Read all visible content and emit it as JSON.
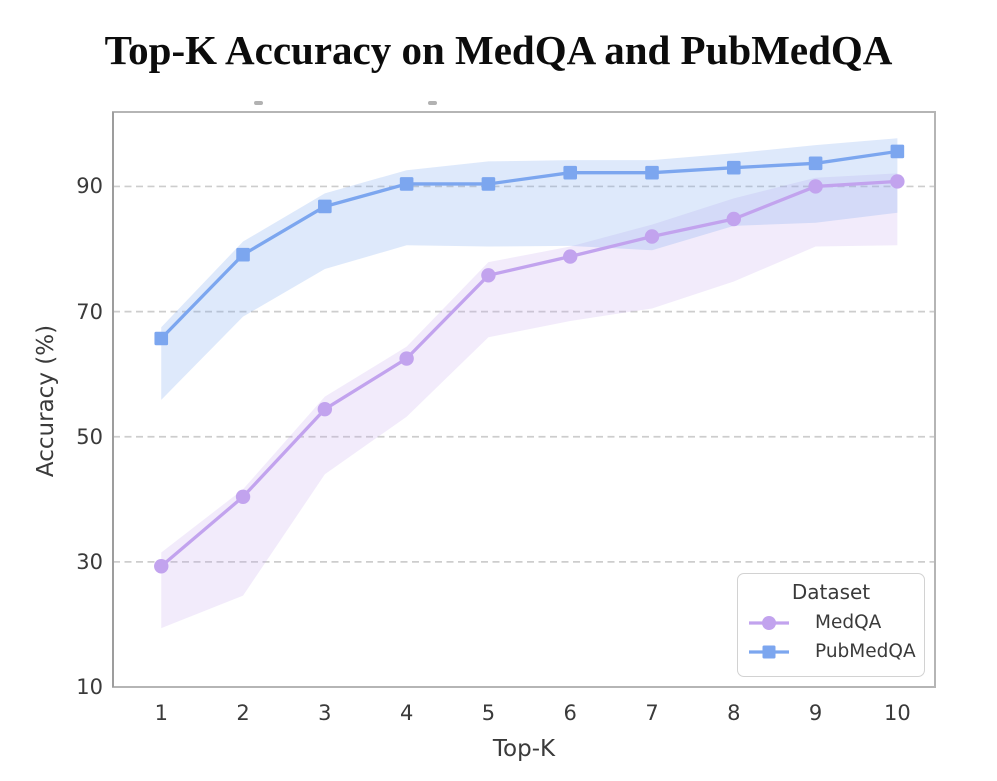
{
  "title": "Top-K Accuracy on MedQA and PubMedQA",
  "axes": {
    "x_label": "Top-K",
    "y_label": "Accuracy (%)",
    "x_ticks": [
      "1",
      "2",
      "3",
      "4",
      "5",
      "6",
      "7",
      "8",
      "9",
      "10"
    ],
    "y_ticks": [
      "10",
      "30",
      "50",
      "70",
      "90"
    ]
  },
  "legend": {
    "title": "Dataset",
    "entries": [
      {
        "label": "MedQA",
        "marker": "circle",
        "color": "#c2a3ee"
      },
      {
        "label": "PubMedQA",
        "marker": "square",
        "color": "#7ca6ef"
      }
    ],
    "position": "lower right"
  },
  "colors": {
    "medqa_line": "#c2a3ee",
    "medqa_band": "rgba(194,163,238,0.22)",
    "pubmedqa_line": "#7ca6ef",
    "pubmedqa_band": "rgba(124,166,239,0.25)",
    "gridline": "#cdcdcd",
    "spine": "#b5b5b5",
    "text": "#3a3a3a"
  },
  "chart_data": {
    "type": "line",
    "title": "Top-K Accuracy on MedQA and PubMedQA",
    "xlabel": "Top-K",
    "ylabel": "Accuracy (%)",
    "x": [
      1,
      2,
      3,
      4,
      5,
      6,
      7,
      8,
      9,
      10
    ],
    "xlim": [
      0.41,
      10.46
    ],
    "ylim": [
      10,
      101.9
    ],
    "ytick_values": [
      10,
      30,
      50,
      70,
      90
    ],
    "gridline_values": [
      30,
      50,
      70,
      90
    ],
    "grid": "horizontal dashed",
    "legend_position": "lower right",
    "series": [
      {
        "name": "MedQA",
        "marker": "circle",
        "color": "#c2a3ee",
        "band_color": "rgba(194,163,238,0.22)",
        "values": [
          29.3,
          40.4,
          54.4,
          62.5,
          75.8,
          78.8,
          82.0,
          84.8,
          90.0,
          90.8
        ],
        "band_lower": [
          19.4,
          24.6,
          44.0,
          53.2,
          65.9,
          68.5,
          70.5,
          74.8,
          80.4,
          80.6
        ],
        "band_upper": [
          31.5,
          41.6,
          56.4,
          64.4,
          77.9,
          80.4,
          83.9,
          88.1,
          91.4,
          92.1
        ]
      },
      {
        "name": "PubMedQA",
        "marker": "square",
        "color": "#7ca6ef",
        "band_color": "rgba(124,166,239,0.25)",
        "values": [
          65.7,
          79.1,
          86.8,
          90.4,
          90.4,
          92.2,
          92.2,
          93.0,
          93.7,
          95.6
        ],
        "band_lower": [
          55.9,
          69.2,
          76.8,
          80.6,
          80.4,
          80.5,
          79.8,
          83.7,
          84.2,
          85.8
        ],
        "band_upper": [
          67.5,
          81.2,
          88.9,
          92.6,
          94.0,
          94.2,
          94.2,
          95.3,
          96.6,
          97.7
        ]
      }
    ]
  }
}
